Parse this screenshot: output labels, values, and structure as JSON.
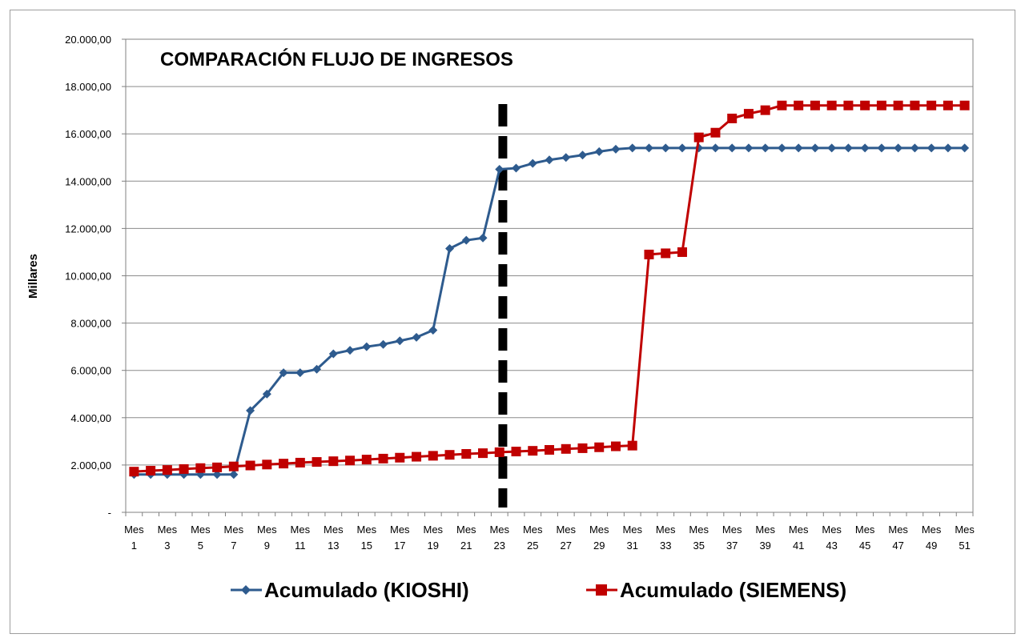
{
  "chart_data": {
    "type": "line",
    "title": "COMPARACIÓN FLUJO DE INGRESOS",
    "ylabel": "Millares",
    "xlabel": "",
    "ylim": [
      0,
      20000
    ],
    "y_ticks": [
      {
        "value": 0,
        "label": "-"
      },
      {
        "value": 2000,
        "label": "2.000,00"
      },
      {
        "value": 4000,
        "label": "4.000,00"
      },
      {
        "value": 6000,
        "label": "6.000,00"
      },
      {
        "value": 8000,
        "label": "8.000,00"
      },
      {
        "value": 10000,
        "label": "10.000,00"
      },
      {
        "value": 12000,
        "label": "12.000,00"
      },
      {
        "value": 14000,
        "label": "14.000,00"
      },
      {
        "value": 16000,
        "label": "16.000,00"
      },
      {
        "value": 18000,
        "label": "18.000,00"
      },
      {
        "value": 20000,
        "label": "20.000,00"
      }
    ],
    "grid": true,
    "x_count": 51,
    "x_tick_labels": [
      {
        "index": 1,
        "top": "Mes",
        "bottom": "1"
      },
      {
        "index": 3,
        "top": "Mes",
        "bottom": "3"
      },
      {
        "index": 5,
        "top": "Mes",
        "bottom": "5"
      },
      {
        "index": 7,
        "top": "Mes",
        "bottom": "7"
      },
      {
        "index": 9,
        "top": "Mes",
        "bottom": "9"
      },
      {
        "index": 11,
        "top": "Mes",
        "bottom": "11"
      },
      {
        "index": 13,
        "top": "Mes",
        "bottom": "13"
      },
      {
        "index": 15,
        "top": "Mes",
        "bottom": "15"
      },
      {
        "index": 17,
        "top": "Mes",
        "bottom": "17"
      },
      {
        "index": 19,
        "top": "Mes",
        "bottom": "19"
      },
      {
        "index": 21,
        "top": "Mes",
        "bottom": "21"
      },
      {
        "index": 23,
        "top": "Mes",
        "bottom": "23"
      },
      {
        "index": 25,
        "top": "Mes",
        "bottom": "25"
      },
      {
        "index": 27,
        "top": "Mes",
        "bottom": "27"
      },
      {
        "index": 29,
        "top": "Mes",
        "bottom": "29"
      },
      {
        "index": 31,
        "top": "Mes",
        "bottom": "31"
      },
      {
        "index": 33,
        "top": "Mes",
        "bottom": "33"
      },
      {
        "index": 35,
        "top": "Mes",
        "bottom": "35"
      },
      {
        "index": 37,
        "top": "Mes",
        "bottom": "37"
      },
      {
        "index": 39,
        "top": "Mes",
        "bottom": "39"
      },
      {
        "index": 41,
        "top": "Mes",
        "bottom": "41"
      },
      {
        "index": 43,
        "top": "Mes",
        "bottom": "43"
      },
      {
        "index": 45,
        "top": "Mes",
        "bottom": "45"
      },
      {
        "index": 47,
        "top": "Mes",
        "bottom": "47"
      },
      {
        "index": 49,
        "top": "Mes",
        "bottom": "49"
      },
      {
        "index": 51,
        "top": "Mes",
        "bottom": "51"
      }
    ],
    "reference_line": {
      "x": 23.2,
      "style": "dashed",
      "color": "#000000"
    },
    "series": [
      {
        "name": "Acumulado (KIOSHI)",
        "color": "#2e5b8e",
        "marker": "diamond",
        "values": [
          1600,
          1600,
          1600,
          1600,
          1600,
          1600,
          1600,
          4300,
          5000,
          5900,
          5900,
          6050,
          6700,
          6850,
          7000,
          7100,
          7250,
          7400,
          7700,
          11150,
          11500,
          11600,
          14500,
          14550,
          14750,
          14900,
          15000,
          15100,
          15250,
          15350,
          15400,
          15400,
          15400,
          15400,
          15400,
          15400,
          15400,
          15400,
          15400,
          15400,
          15400,
          15400,
          15400,
          15400,
          15400,
          15400,
          15400,
          15400,
          15400,
          15400,
          15400
        ]
      },
      {
        "name": "Acumulado (SIEMENS)",
        "color": "#c00000",
        "marker": "square",
        "values": [
          1720,
          1760,
          1790,
          1830,
          1870,
          1900,
          1940,
          1980,
          2020,
          2060,
          2100,
          2130,
          2160,
          2190,
          2230,
          2270,
          2310,
          2350,
          2390,
          2430,
          2470,
          2500,
          2540,
          2570,
          2600,
          2640,
          2680,
          2710,
          2750,
          2790,
          2820,
          10900,
          10950,
          11000,
          15850,
          16050,
          16650,
          16850,
          17000,
          17200,
          17200,
          17200,
          17200,
          17200,
          17200,
          17200,
          17200,
          17200,
          17200,
          17200,
          17200
        ]
      }
    ]
  }
}
